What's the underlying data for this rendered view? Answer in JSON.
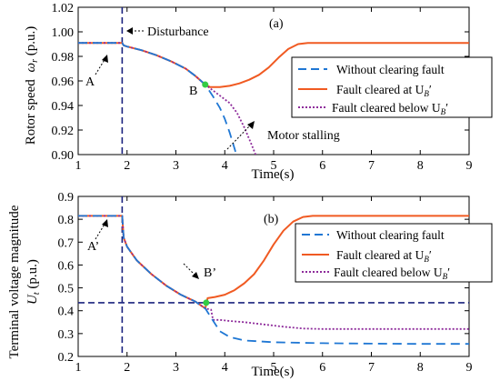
{
  "chart_data": [
    {
      "type": "line",
      "panel_label": "(a)",
      "xlabel": "Time(s)",
      "ylabel": "Rotor speed",
      "ylabel_symbol": "ω",
      "ylabel_subscript": "r",
      "ylabel_unit": " (p.u.)",
      "xlim": [
        1,
        9
      ],
      "ylim": [
        0.9,
        1.02
      ],
      "xticks": [
        "1",
        "2",
        "3",
        "4",
        "5",
        "6",
        "7",
        "8",
        "9"
      ],
      "yticks": [
        "0.90",
        "0.92",
        "0.94",
        "0.96",
        "0.98",
        "1.00",
        "1.02"
      ],
      "legend_position": "right",
      "series": [
        {
          "name": "Without clearing fault",
          "color": "#1f77d4",
          "style": "dashed",
          "x": [
            1,
            1.9,
            1.93,
            2.0,
            2.3,
            2.6,
            2.9,
            3.2,
            3.4,
            3.6,
            3.75,
            3.9,
            4.0,
            4.1,
            4.2,
            4.25
          ],
          "y": [
            0.991,
            0.991,
            0.989,
            0.988,
            0.985,
            0.981,
            0.976,
            0.97,
            0.964,
            0.957,
            0.948,
            0.938,
            0.929,
            0.918,
            0.905,
            0.898
          ]
        },
        {
          "name": "Fault cleared at U",
          "name_subscript": "B",
          "name_suffix": "′",
          "color": "#f05a22",
          "style": "solid",
          "x": [
            1,
            1.9,
            1.93,
            2.0,
            2.3,
            2.6,
            2.9,
            3.2,
            3.4,
            3.6,
            3.7,
            3.9,
            4.1,
            4.3,
            4.5,
            4.7,
            4.9,
            5.1,
            5.3,
            5.5,
            5.7,
            6.0,
            7.0,
            8.0,
            9.0
          ],
          "y": [
            0.991,
            0.991,
            0.989,
            0.988,
            0.985,
            0.981,
            0.976,
            0.97,
            0.964,
            0.957,
            0.955,
            0.955,
            0.956,
            0.958,
            0.961,
            0.965,
            0.971,
            0.979,
            0.986,
            0.99,
            0.991,
            0.991,
            0.991,
            0.991,
            0.991
          ]
        },
        {
          "name": "Fault cleared below U",
          "name_subscript": "B",
          "name_suffix": "′",
          "color": "#8e2c9b",
          "style": "dotted",
          "x": [
            1,
            1.9,
            1.93,
            2.0,
            2.3,
            2.6,
            2.9,
            3.2,
            3.4,
            3.6,
            3.7,
            3.9,
            4.1,
            4.25,
            4.4,
            4.55,
            4.65
          ],
          "y": [
            0.991,
            0.991,
            0.989,
            0.988,
            0.985,
            0.981,
            0.976,
            0.97,
            0.964,
            0.957,
            0.954,
            0.948,
            0.942,
            0.934,
            0.922,
            0.908,
            0.898
          ]
        }
      ],
      "markers": [
        {
          "x": 3.6,
          "y": 0.957,
          "color": "#33cc44"
        }
      ],
      "vertical_line": {
        "x": 1.9,
        "color": "#1a237e",
        "style": "dashed"
      },
      "annotations": [
        {
          "text": "Disturbance",
          "target": "disturbance"
        },
        {
          "text": "A",
          "target": "point-a"
        },
        {
          "text": "B",
          "target": "point-b"
        },
        {
          "text": "Motor stalling",
          "target": "stalling"
        }
      ]
    },
    {
      "type": "line",
      "panel_label": "(b)",
      "xlabel": "Time(s)",
      "ylabel": "Terminal voltage magnitude",
      "ylabel2_symbol": "U",
      "ylabel2_subscript": "t",
      "ylabel2_unit": " (p.u.)",
      "xlim": [
        1,
        9
      ],
      "ylim": [
        0.2,
        0.9
      ],
      "xticks": [
        "1",
        "2",
        "3",
        "4",
        "5",
        "6",
        "7",
        "8",
        "9"
      ],
      "yticks": [
        "0.2",
        "0.3",
        "0.4",
        "0.5",
        "0.6",
        "0.7",
        "0.8",
        "0.9"
      ],
      "legend_position": "right",
      "series": [
        {
          "name": "Without clearing fault",
          "color": "#1f77d4",
          "style": "dashed",
          "x": [
            1,
            1.9,
            1.93,
            2.0,
            2.2,
            2.5,
            2.8,
            3.1,
            3.4,
            3.6,
            3.75,
            3.9,
            4.1,
            4.4,
            5.0,
            6.0,
            7.0,
            8.0,
            9.0
          ],
          "y": [
            0.815,
            0.815,
            0.72,
            0.68,
            0.62,
            0.56,
            0.51,
            0.47,
            0.44,
            0.41,
            0.36,
            0.31,
            0.285,
            0.27,
            0.262,
            0.258,
            0.256,
            0.255,
            0.255
          ]
        },
        {
          "name": "Fault cleared at U",
          "name_subscript": "B",
          "name_suffix": "′",
          "color": "#f05a22",
          "style": "solid",
          "x": [
            1,
            1.9,
            1.93,
            2.0,
            2.2,
            2.5,
            2.8,
            3.1,
            3.4,
            3.6,
            3.65,
            3.8,
            4.0,
            4.2,
            4.4,
            4.6,
            4.8,
            5.0,
            5.2,
            5.4,
            5.6,
            5.8,
            6.0,
            7.0,
            8.0,
            9.0
          ],
          "y": [
            0.815,
            0.815,
            0.72,
            0.68,
            0.62,
            0.56,
            0.51,
            0.47,
            0.44,
            0.41,
            0.455,
            0.46,
            0.47,
            0.49,
            0.52,
            0.56,
            0.62,
            0.69,
            0.75,
            0.79,
            0.81,
            0.815,
            0.815,
            0.815,
            0.815,
            0.815
          ]
        },
        {
          "name": "Fault cleared below U",
          "name_subscript": "B",
          "name_suffix": "′",
          "color": "#8e2c9b",
          "style": "dotted",
          "x": [
            1,
            1.9,
            1.93,
            2.0,
            2.2,
            2.5,
            2.8,
            3.1,
            3.4,
            3.6,
            3.72,
            3.76,
            3.9,
            4.1,
            4.4,
            4.8,
            5.2,
            5.6,
            6.0,
            7.0,
            8.0,
            9.0
          ],
          "y": [
            0.815,
            0.815,
            0.72,
            0.68,
            0.62,
            0.56,
            0.51,
            0.47,
            0.44,
            0.41,
            0.405,
            0.36,
            0.36,
            0.355,
            0.35,
            0.34,
            0.33,
            0.322,
            0.32,
            0.32,
            0.32,
            0.32
          ]
        }
      ],
      "markers": [
        {
          "x": 3.62,
          "y": 0.435,
          "color": "#33cc44"
        }
      ],
      "vertical_line": {
        "x": 1.9,
        "color": "#1a237e",
        "style": "dashed"
      },
      "horizontal_line": {
        "y": 0.435,
        "color": "#1a237e",
        "style": "dashed"
      },
      "annotations": [
        {
          "text": "A’",
          "target": "point-a"
        },
        {
          "text": "B’",
          "target": "point-b"
        }
      ]
    }
  ]
}
